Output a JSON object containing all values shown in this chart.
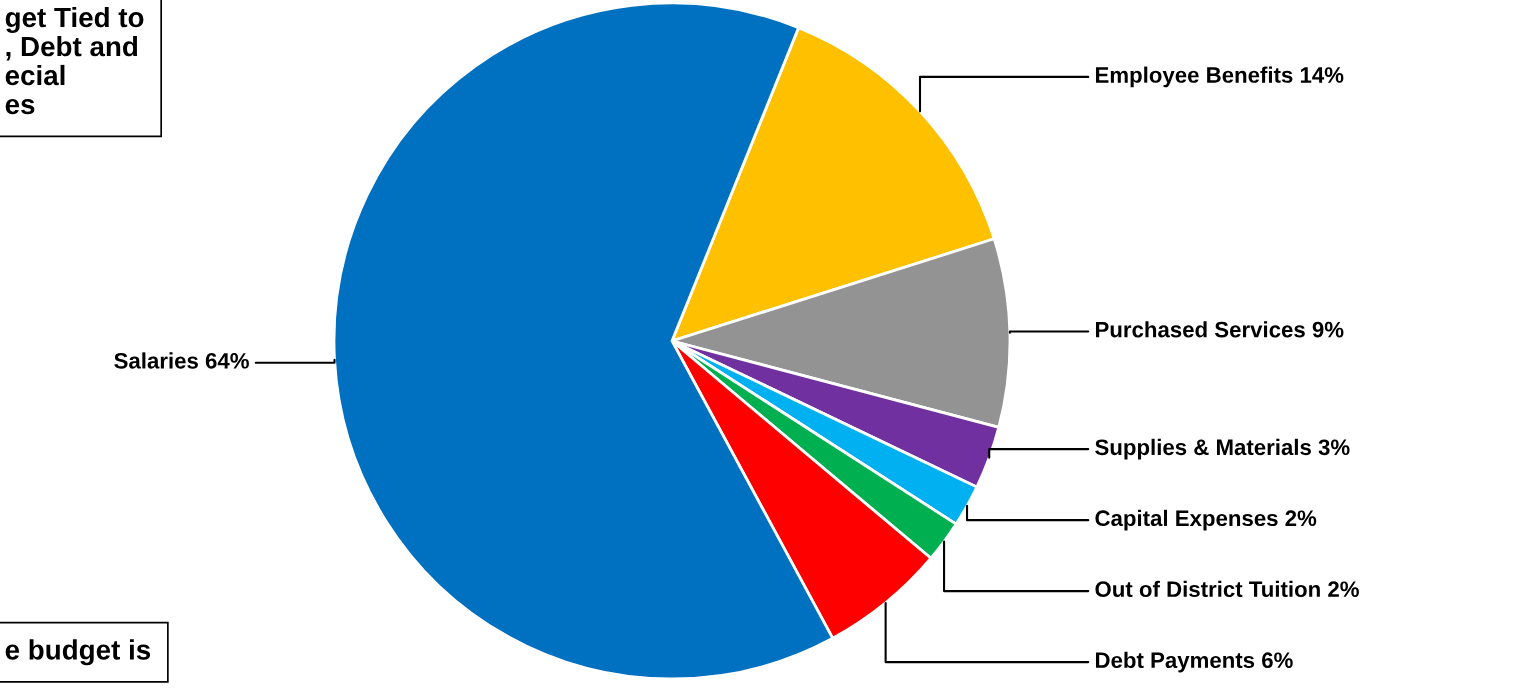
{
  "chart_data": {
    "type": "pie",
    "categories": [
      "Employee Benefits",
      "Purchased Services",
      "Supplies & Materials",
      "Capital Expenses",
      "Out of District Tuition",
      "Debt Payments",
      "Salaries"
    ],
    "values": [
      14,
      9,
      3,
      2,
      2,
      6,
      64
    ],
    "value_labels": [
      "14%",
      "9%",
      "3%",
      "2%",
      "2%",
      "6%",
      "64%"
    ],
    "colors": [
      "#ffc000",
      "#939393",
      "#7030a0",
      "#00b0f0",
      "#00b050",
      "#ff0000",
      "#0070c0"
    ],
    "annotations": [
      "get Tied to\n, Debt and\necial\nes",
      "e budget is"
    ],
    "legend": false
  }
}
